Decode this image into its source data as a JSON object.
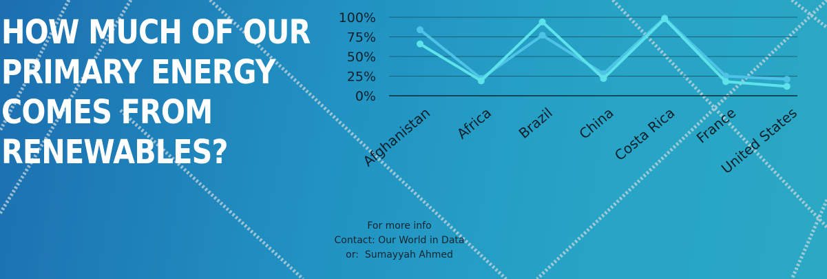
{
  "headline": [
    "HOW MUCH OF OUR",
    "PRIMARY ENERGY",
    "COMES FROM",
    "RENEWABLES?"
  ],
  "info": [
    "For more info",
    "Contact: Our World in Data",
    "or:  Sumayyah Ahmed"
  ],
  "colors": {
    "series_a": "#4fc3e6",
    "series_b": "#5ee3ea",
    "axis": "#0f2a36",
    "grid": "#16607a"
  },
  "chart_data": {
    "type": "line",
    "categories": [
      "Afghanistan",
      "Africa",
      "Brazil",
      "China",
      "Costa Rica",
      "France",
      "United States"
    ],
    "series": [
      {
        "values": [
          84,
          22,
          77,
          28,
          99,
          25,
          21
        ]
      },
      {
        "values": [
          66,
          19,
          94,
          22,
          98,
          18,
          12
        ]
      }
    ],
    "yticks": [
      "100%",
      "75%",
      "50%",
      "25%",
      "0%"
    ],
    "ylim": [
      0,
      100
    ],
    "grid": true,
    "legend": "none"
  }
}
